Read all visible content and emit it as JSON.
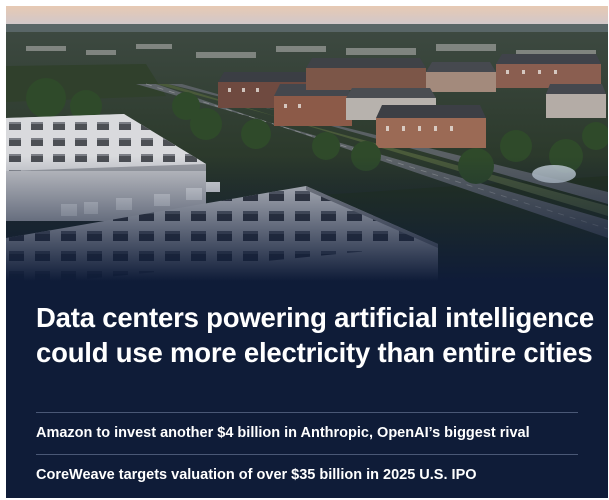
{
  "hero": {
    "headline": "Data centers powering artificial intelligence could use more electricity than entire cities"
  },
  "related_stories": [
    {
      "title": "Amazon to invest another $4 billion in Anthropic, OpenAI’s biggest rival"
    },
    {
      "title": "CoreWeave targets valuation of over $35 billion in 2025 U.S. IPO"
    }
  ],
  "colors": {
    "card_background": "#0f1c38",
    "divider": "#4a5876",
    "text": "#ffffff"
  }
}
